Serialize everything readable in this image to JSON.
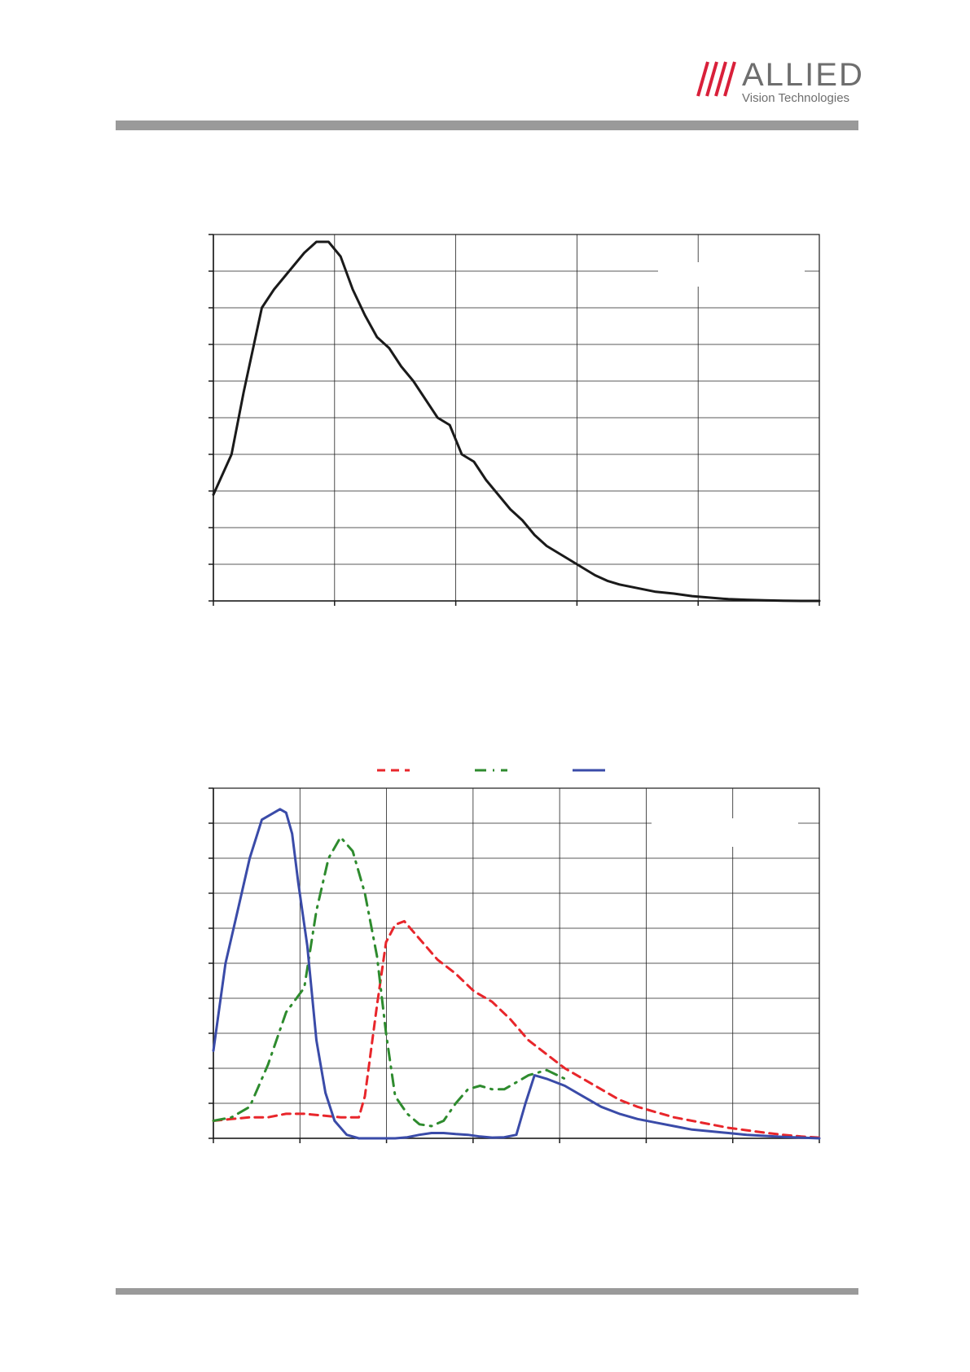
{
  "header": {
    "logo_brand": "ALLIED",
    "logo_sub": "Vision Technologies",
    "logo_color": "#6e6e6e",
    "slash_color": "#d9203a",
    "rule_color": "#9a9a9a"
  },
  "chart_data": [
    {
      "type": "line",
      "title": "",
      "xlabel": "",
      "ylabel": "",
      "grid": true,
      "x_major_ticks": 5,
      "y_major_ticks": 10,
      "xlim": [
        0,
        100
      ],
      "ylim": [
        0,
        100
      ],
      "series": [
        {
          "color": "#1a1a1a",
          "style": "solid",
          "x": [
            0,
            3,
            5,
            8,
            10,
            13,
            15,
            17,
            19,
            21,
            23,
            25,
            27,
            29,
            31,
            33,
            35,
            37,
            39,
            41,
            43,
            45,
            47,
            49,
            51,
            53,
            55,
            57,
            59,
            61,
            63,
            65,
            67,
            70,
            73,
            76,
            79,
            82,
            85,
            88,
            91,
            94,
            97,
            100
          ],
          "y": [
            29,
            40,
            57,
            80,
            85,
            91,
            95,
            98,
            98,
            94,
            85,
            78,
            72,
            69,
            64,
            60,
            55,
            50,
            48,
            40,
            38,
            33,
            29,
            25,
            22,
            18,
            15,
            13,
            11,
            9,
            7,
            5.5,
            4.5,
            3.5,
            2.5,
            2,
            1.3,
            0.9,
            0.5,
            0.3,
            0.15,
            0.05,
            0,
            0
          ]
        }
      ]
    },
    {
      "type": "line",
      "title": "",
      "xlabel": "",
      "ylabel": "",
      "grid": true,
      "x_major_ticks": 7,
      "y_major_ticks": 10,
      "xlim": [
        0,
        100
      ],
      "ylim": [
        0,
        100
      ],
      "legend": "top",
      "series": [
        {
          "color": "#e8262b",
          "style": "dashed",
          "x": [
            0,
            3,
            6,
            9,
            12,
            15,
            18,
            21,
            24,
            25,
            27,
            28.5,
            30,
            31.5,
            33,
            35,
            37,
            40,
            43,
            46,
            49,
            52,
            55,
            58,
            61,
            64,
            67,
            70,
            73,
            76,
            79,
            82,
            85,
            88,
            91,
            94,
            97,
            100
          ],
          "y": [
            5,
            5.5,
            6,
            6,
            7,
            7,
            6.5,
            6,
            6,
            12,
            38,
            56,
            61,
            62,
            59,
            55,
            51,
            47,
            42,
            39,
            34,
            28,
            24,
            20,
            17,
            14,
            11,
            9,
            7.5,
            6,
            5,
            4,
            3,
            2.3,
            1.6,
            1,
            0.5,
            0.2
          ]
        },
        {
          "color": "#2e8b2e",
          "style": "dash-dot",
          "x": [
            0,
            3,
            6,
            9,
            12,
            15,
            17,
            19,
            21,
            23,
            25,
            27,
            28.5,
            30,
            32,
            34,
            36,
            38,
            40,
            42,
            44,
            46,
            48,
            50,
            52,
            55,
            58
          ],
          "y": [
            5,
            6,
            9,
            21,
            36,
            43,
            65,
            80,
            86,
            82,
            70,
            52,
            30,
            12,
            7,
            4,
            3.5,
            5,
            10,
            14,
            15,
            14,
            14,
            16,
            18,
            19.5,
            17
          ]
        },
        {
          "color": "#3a4ba8",
          "style": "solid",
          "x": [
            0,
            2,
            4,
            6,
            8,
            10,
            11,
            12,
            13,
            14,
            15.5,
            17,
            18.5,
            20,
            22,
            24,
            26,
            28,
            30,
            32,
            34,
            36,
            38,
            40,
            42,
            44,
            46,
            48,
            50,
            51.5,
            53,
            55,
            58,
            61,
            64,
            67,
            70,
            73,
            76,
            79,
            82,
            85,
            88,
            91,
            94,
            97,
            100
          ],
          "y": [
            25,
            50,
            65,
            80,
            91,
            93,
            94,
            93,
            87,
            73,
            55,
            28,
            13,
            5,
            1,
            0,
            0,
            0,
            0,
            0.3,
            1,
            1.5,
            1.5,
            1.2,
            1,
            0.5,
            0.2,
            0.3,
            1,
            10,
            18,
            17,
            15,
            12,
            9,
            7,
            5.5,
            4.5,
            3.5,
            2.5,
            2,
            1.5,
            1,
            0.7,
            0.4,
            0.2,
            0
          ]
        }
      ]
    }
  ]
}
